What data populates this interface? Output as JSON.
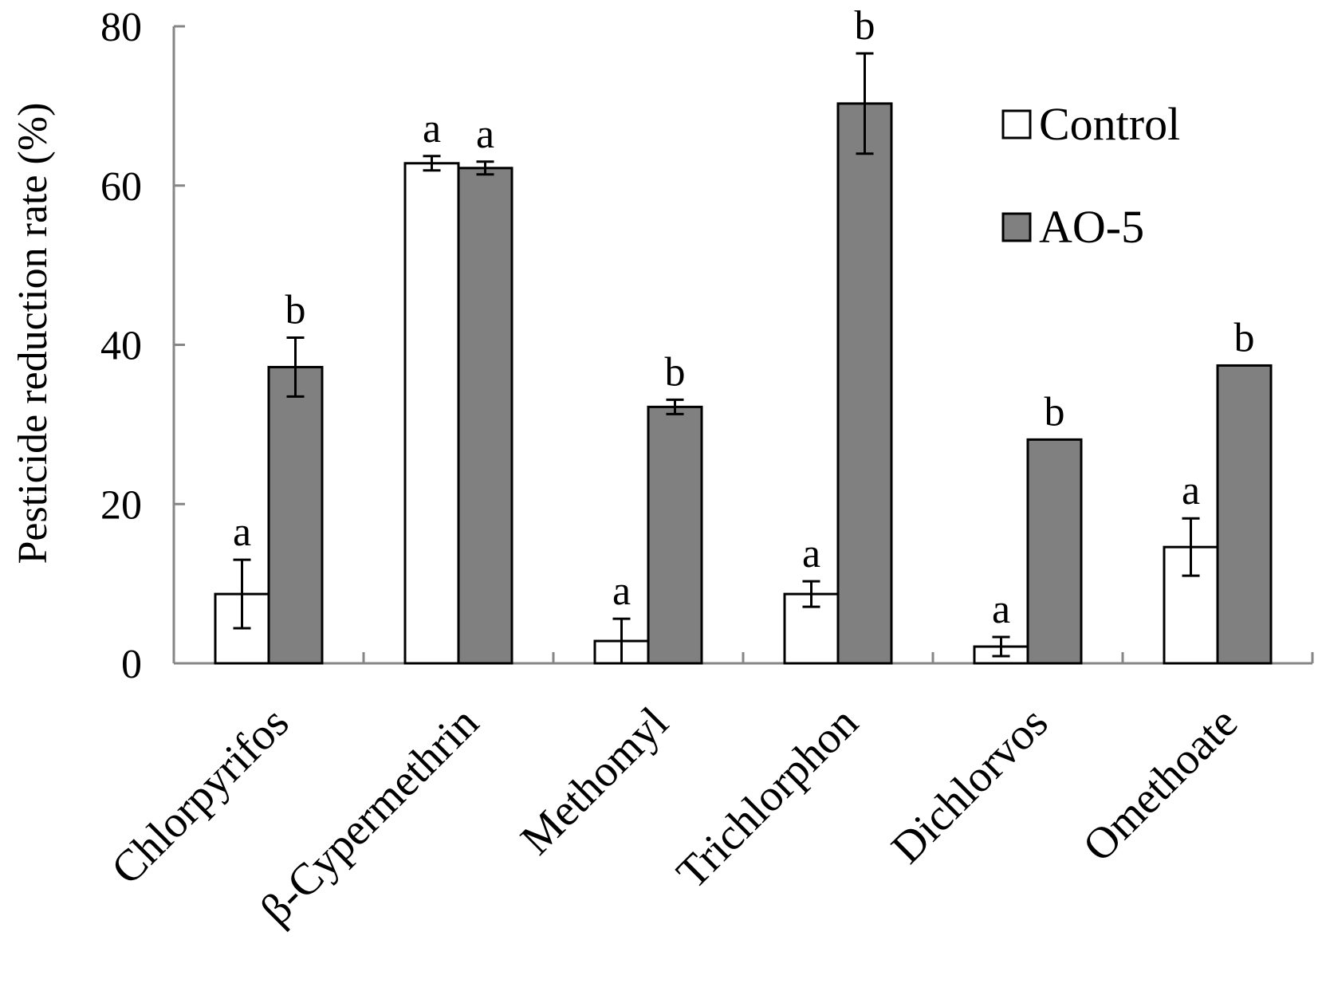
{
  "chart_data": {
    "type": "bar",
    "title": "",
    "xlabel": "",
    "ylabel": "Pesticide reduction rate (%)",
    "ylim": [
      0,
      80
    ],
    "yticks": [
      "0",
      "20",
      "40",
      "60",
      "80"
    ],
    "categories": [
      "Chlorpyrifos",
      "β-Cypermethrin",
      "Methomyl",
      "Trichlorphon",
      "Dichlorvos",
      "Omethoate"
    ],
    "series": [
      {
        "name": "Control",
        "color": "#ffffff",
        "values": [
          8.7,
          62.8,
          2.8,
          8.7,
          2.1,
          14.6
        ],
        "errors": [
          4.3,
          0.9,
          2.8,
          1.6,
          1.2,
          3.6
        ],
        "letters": [
          "a",
          "a",
          "a",
          "a",
          "a",
          "a"
        ]
      },
      {
        "name": "AO-5",
        "color": "#808080",
        "values": [
          37.2,
          62.2,
          32.2,
          70.3,
          28.1,
          37.4
        ],
        "errors": [
          3.7,
          0.8,
          0.9,
          6.3,
          0.0,
          0.0
        ],
        "letters": [
          "b",
          "a",
          "b",
          "b",
          "b",
          "b"
        ]
      }
    ],
    "legend": {
      "position": "top-right"
    },
    "grid": false
  }
}
